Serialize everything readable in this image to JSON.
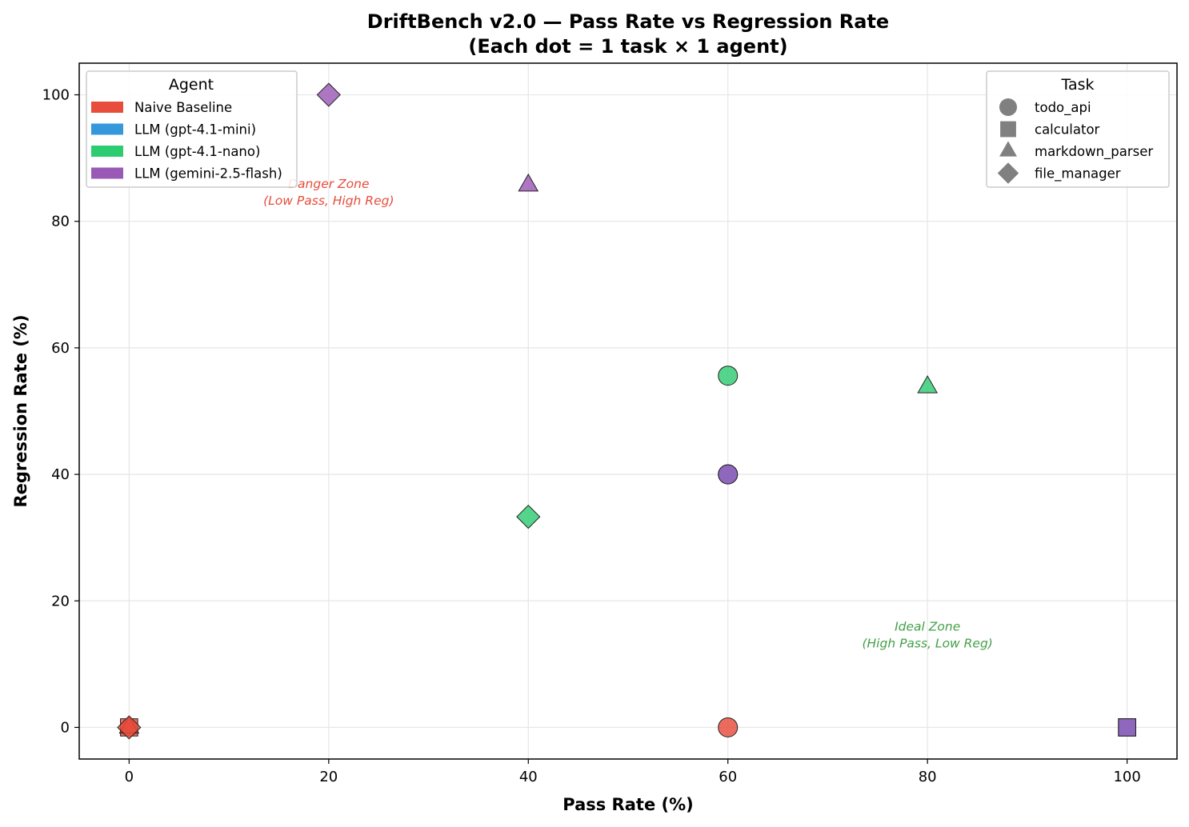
{
  "chart_data": {
    "type": "scatter",
    "title_line1": "DriftBench v2.0 — Pass Rate vs Regression Rate",
    "title_line2": "(Each dot = 1 task × 1 agent)",
    "xlabel": "Pass Rate (%)",
    "ylabel": "Regression Rate (%)",
    "xlim": [
      -5,
      105
    ],
    "ylim": [
      -5,
      105
    ],
    "xticks": [
      "0",
      "20",
      "40",
      "60",
      "80",
      "100"
    ],
    "yticks": [
      "0",
      "20",
      "40",
      "60",
      "80",
      "100"
    ],
    "grid": true,
    "agent_legend": {
      "title": "Agent",
      "placement": "top-left",
      "entries": [
        {
          "name": "Naive Baseline",
          "color": "#e74c3c"
        },
        {
          "name": "LLM (gpt-4.1-mini)",
          "color": "#3498db"
        },
        {
          "name": "LLM (gpt-4.1-nano)",
          "color": "#2ecc71"
        },
        {
          "name": "LLM (gemini-2.5-flash)",
          "color": "#9b59b6"
        }
      ]
    },
    "task_legend": {
      "title": "Task",
      "placement": "top-right",
      "entries": [
        {
          "name": "todo_api",
          "marker": "circle"
        },
        {
          "name": "calculator",
          "marker": "square"
        },
        {
          "name": "markdown_parser",
          "marker": "triangle"
        },
        {
          "name": "file_manager",
          "marker": "diamond"
        }
      ]
    },
    "annotations": [
      {
        "line1": "Danger Zone",
        "line2": "(Low Pass, High Reg)",
        "x": 20,
        "y": 82,
        "color": "#e74c3c"
      },
      {
        "line1": "Ideal Zone",
        "line2": "(High Pass, Low Reg)",
        "x": 80,
        "y": 12,
        "color": "#43a047"
      }
    ],
    "points": [
      {
        "agent": "Naive Baseline",
        "task": "calculator",
        "x": 0,
        "y": 0,
        "color": "#e74c3c",
        "marker": "square"
      },
      {
        "agent": "Naive Baseline",
        "task": "markdown_parser",
        "x": 0,
        "y": 0,
        "color": "#e74c3c",
        "marker": "triangle"
      },
      {
        "agent": "Naive Baseline",
        "task": "file_manager",
        "x": 0,
        "y": 0,
        "color": "#e74c3c",
        "marker": "diamond"
      },
      {
        "agent": "Naive Baseline",
        "task": "todo_api",
        "x": 60,
        "y": 0,
        "color": "#e74c3c",
        "marker": "circle"
      },
      {
        "agent": "LLM (gpt-4.1-mini)",
        "task": "todo_api",
        "x": 60,
        "y": 40,
        "color": "#3498db",
        "marker": "circle"
      },
      {
        "agent": "LLM (gpt-4.1-mini)",
        "task": "calculator",
        "x": 100,
        "y": 0,
        "color": "#3498db",
        "marker": "square"
      },
      {
        "agent": "LLM (gpt-4.1-nano)",
        "task": "todo_api",
        "x": 60,
        "y": 55.6,
        "color": "#2ecc71",
        "marker": "circle"
      },
      {
        "agent": "LLM (gpt-4.1-nano)",
        "task": "markdown_parser",
        "x": 80,
        "y": 53.8,
        "color": "#2ecc71",
        "marker": "triangle"
      },
      {
        "agent": "LLM (gpt-4.1-nano)",
        "task": "file_manager",
        "x": 40,
        "y": 33.3,
        "color": "#2ecc71",
        "marker": "diamond"
      },
      {
        "agent": "LLM (gemini-2.5-flash)",
        "task": "markdown_parser",
        "x": 40,
        "y": 85.7,
        "color": "#9b59b6",
        "marker": "triangle"
      },
      {
        "agent": "LLM (gemini-2.5-flash)",
        "task": "file_manager",
        "x": 20,
        "y": 100,
        "color": "#9b59b6",
        "marker": "diamond"
      },
      {
        "agent": "LLM (gemini-2.5-flash)",
        "task": "todo_api",
        "x": 60,
        "y": 40,
        "color": "#9b59b6",
        "marker": "circle"
      },
      {
        "agent": "LLM (gemini-2.5-flash)",
        "task": "calculator",
        "x": 100,
        "y": 0,
        "color": "#9b59b6",
        "marker": "square"
      }
    ]
  }
}
